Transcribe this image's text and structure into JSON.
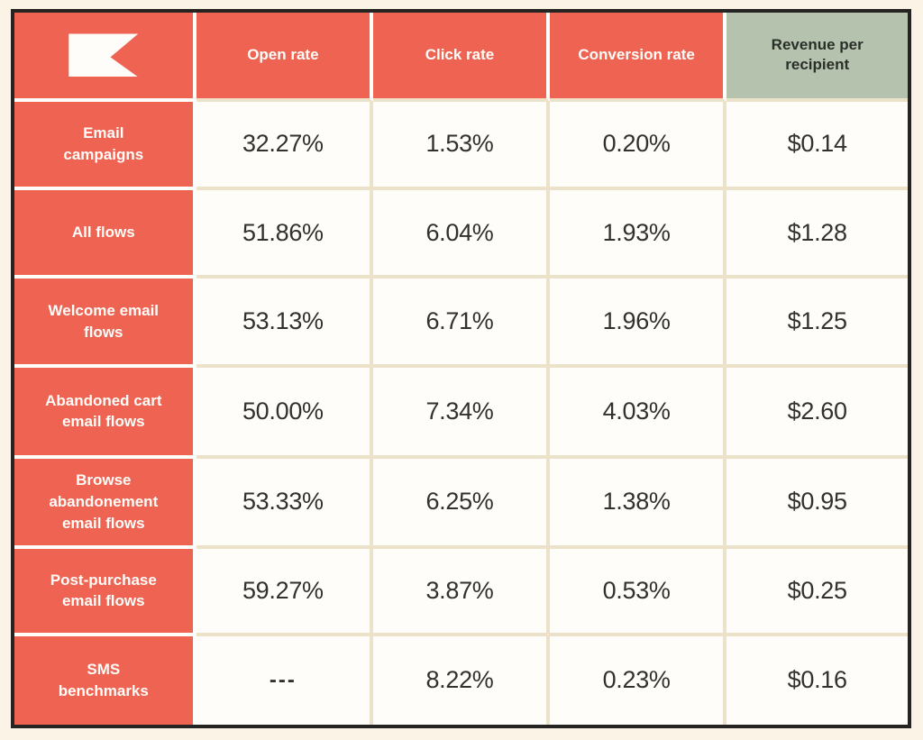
{
  "title": "Email and SMS benchmarks table",
  "colors": {
    "coral": "#ee6352",
    "sage_green": "#b5c3ae",
    "page_background": "#fbf3e6",
    "cell_background": "#fffdfa",
    "grid_line_cream": "#ece1c9",
    "outer_border": "#262423",
    "value_text": "#33312e",
    "header_text_light": "#fffdfa",
    "header_text_dark": "#2b2f2a"
  },
  "logo": {
    "name": "klaviyo-flag-icon"
  },
  "table": {
    "columns": [
      {
        "label": ""
      },
      {
        "label": "Open rate"
      },
      {
        "label": "Click rate"
      },
      {
        "label": "Conversion rate"
      },
      {
        "label": "Revenue per recipient"
      }
    ],
    "rows": [
      {
        "label": "Email campaigns",
        "values": [
          "32.27%",
          "1.53%",
          "0.20%",
          "$0.14"
        ]
      },
      {
        "label": "All flows",
        "values": [
          "51.86%",
          "6.04%",
          "1.93%",
          "$1.28"
        ]
      },
      {
        "label": "Welcome email flows",
        "values": [
          "53.13%",
          "6.71%",
          "1.96%",
          "$1.25"
        ]
      },
      {
        "label": "Abandoned cart email flows",
        "values": [
          "50.00%",
          "7.34%",
          "4.03%",
          "$2.60"
        ]
      },
      {
        "label": "Browse abandonement email flows",
        "values": [
          "53.33%",
          "6.25%",
          "1.38%",
          "$0.95"
        ]
      },
      {
        "label": "Post-purchase email flows",
        "values": [
          "59.27%",
          "3.87%",
          "0.53%",
          "$0.25"
        ]
      },
      {
        "label": "SMS benchmarks",
        "values": [
          "---",
          "8.22%",
          "0.23%",
          "$0.16"
        ]
      }
    ]
  },
  "chart_data": {
    "type": "table",
    "title": "Email and SMS benchmarks",
    "columns": [
      "",
      "Open rate",
      "Click rate",
      "Conversion rate",
      "Revenue per recipient"
    ],
    "rows": [
      [
        "Email campaigns",
        "32.27%",
        "1.53%",
        "0.20%",
        "$0.14"
      ],
      [
        "All flows",
        "51.86%",
        "6.04%",
        "1.93%",
        "$1.28"
      ],
      [
        "Welcome email flows",
        "53.13%",
        "6.71%",
        "1.96%",
        "$1.25"
      ],
      [
        "Abandoned cart email flows",
        "50.00%",
        "7.34%",
        "4.03%",
        "$2.60"
      ],
      [
        "Browse abandonement email flows",
        "53.33%",
        "6.25%",
        "1.38%",
        "$0.95"
      ],
      [
        "Post-purchase email flows",
        "59.27%",
        "3.87%",
        "0.53%",
        "$0.25"
      ],
      [
        "SMS benchmarks",
        "---",
        "8.22%",
        "0.23%",
        "$0.16"
      ]
    ]
  }
}
